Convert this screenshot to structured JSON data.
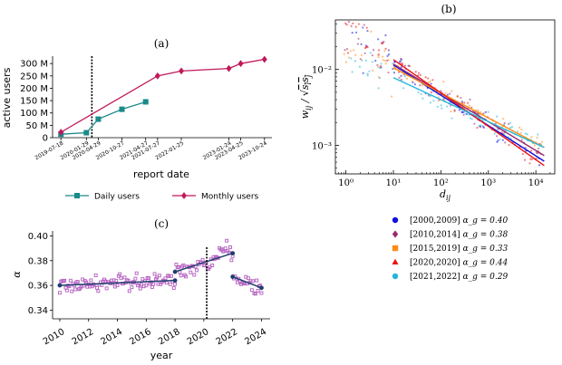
{
  "panel_labels": {
    "a": "(a)",
    "b": "(b)",
    "c": "(c)"
  },
  "chart_data": [
    {
      "type": "line",
      "panel": "(a)",
      "xlabel": "report date",
      "ylabel": "active users",
      "x_tick_labels": [
        "2019-07-18",
        "2020-01-29",
        "2020-04-29",
        "2020-10-27",
        "2021-04-27",
        "2021-07-27",
        "2022-01-25",
        "2023-01-24",
        "2023-04-25",
        "2023-10-24"
      ],
      "y_tick_labels": [
        "0",
        "50 M",
        "100 M",
        "150 M",
        "200 M",
        "250 M",
        "300 M"
      ],
      "ylim": [
        0,
        330
      ],
      "vline": "2020-03-11",
      "series": [
        {
          "name": "Daily users",
          "color": "#1a8a8a",
          "marker": "square",
          "points": [
            {
              "x": "2019-07-18",
              "y": 14
            },
            {
              "x": "2020-01-29",
              "y": 20
            },
            {
              "x": "2020-04-29",
              "y": 75
            },
            {
              "x": "2020-10-27",
              "y": 115
            },
            {
              "x": "2021-04-27",
              "y": 145
            }
          ]
        },
        {
          "name": "Monthly users",
          "color": "#c2185b",
          "marker": "diamond",
          "points": [
            {
              "x": "2019-07-18",
              "y": 22
            },
            {
              "x": "2021-07-27",
              "y": 250
            },
            {
              "x": "2022-01-25",
              "y": 270
            },
            {
              "x": "2023-01-24",
              "y": 280
            },
            {
              "x": "2023-04-25",
              "y": 300
            },
            {
              "x": "2023-10-24",
              "y": 317
            }
          ]
        }
      ]
    },
    {
      "type": "scatter",
      "panel": "(b)",
      "xlabel": "d_ij",
      "ylabel": "w_ij / sqrt(s_i s_j)",
      "xscale": "log",
      "yscale": "log",
      "x_tick_labels": [
        "10⁰",
        "10¹",
        "10²",
        "10³",
        "10⁴"
      ],
      "y_tick_labels": [
        "10⁻³",
        "10⁻²"
      ],
      "xlim": [
        0.6,
        25000
      ],
      "ylim": [
        0.00042,
        0.045
      ],
      "series": [
        {
          "name": "[2000,2009]",
          "legend_suffix": "α_g = 0.40",
          "color": "#1010e0",
          "marker": "circle",
          "alpha": 0.4,
          "fit_at_10": 0.0115
        },
        {
          "name": "[2010,2014]",
          "legend_suffix": "α_g = 0.38",
          "color": "#9c2a6e",
          "marker": "diamond",
          "alpha": 0.38,
          "fit_at_10": 0.0118
        },
        {
          "name": "[2015,2019]",
          "legend_suffix": "α_g = 0.33",
          "color": "#ff8c1a",
          "marker": "square",
          "alpha": 0.33,
          "fit_at_10": 0.0105
        },
        {
          "name": "[2020,2020]",
          "legend_suffix": "α_g = 0.44",
          "color": "#ee1111",
          "marker": "triangle",
          "alpha": 0.44,
          "fit_at_10": 0.0135
        },
        {
          "name": "[2021,2022]",
          "legend_suffix": "α_g = 0.29",
          "color": "#22b8d8",
          "marker": "circle",
          "alpha": 0.29,
          "fit_at_10": 0.0078
        }
      ]
    },
    {
      "type": "scatter",
      "panel": "(c)",
      "xlabel": "year",
      "ylabel": "α",
      "x_tick_labels": [
        "2010",
        "2012",
        "2014",
        "2016",
        "2018",
        "2020",
        "2022",
        "2024"
      ],
      "y_tick_labels": [
        "0.34",
        "0.36",
        "0.38",
        "0.40"
      ],
      "xlim": [
        2009.5,
        2024.6
      ],
      "ylim": [
        0.333,
        0.404
      ],
      "vline": 2020.2,
      "points_color": "#b45fc0",
      "fit_color": "#1f3d6e",
      "fit_segments": [
        {
          "x0": 2010,
          "y0": 0.36,
          "x1": 2018,
          "y1": 0.364
        },
        {
          "x0": 2018,
          "y0": 0.371,
          "x1": 2022,
          "y1": 0.386
        },
        {
          "x0": 2022,
          "y0": 0.367,
          "x1": 2024,
          "y1": 0.358
        }
      ]
    }
  ]
}
